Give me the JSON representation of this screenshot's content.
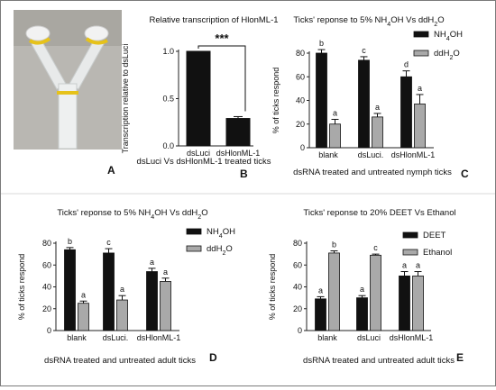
{
  "panel_letters": {
    "A": "A",
    "B": "B",
    "C": "C",
    "D": "D",
    "E": "E"
  },
  "colors": {
    "bar_black": "#111111",
    "bar_gray": "#a9a9a9",
    "axis": "#222222",
    "photo_bg": "#b9b7b2"
  },
  "photo": {
    "description_icon": "y-tube-olfactometer-photo"
  },
  "chart_data": [
    {
      "id": "B",
      "type": "bar",
      "title": "Relative transcription of HlonML-1",
      "ylabel": "Transcription relative to dsLuci",
      "xlabel": "dsLuci Vs dsHlonML-1 treated ticks",
      "categories": [
        "dsLuci",
        "dsHlonML-1"
      ],
      "values": [
        1.0,
        0.29
      ],
      "errors": [
        0.0,
        0.02
      ],
      "bar_colors": [
        "#111111",
        "#111111"
      ],
      "ylim": [
        0,
        1.0
      ],
      "yticks": [
        "0.0",
        "0.5",
        "1.0"
      ],
      "significance": "***",
      "grid": false
    },
    {
      "id": "C",
      "type": "bar",
      "title": "Ticks' reponse to 5% NH4OH Vs ddH2O",
      "ylabel": "% of ticks respond",
      "xlabel": "dsRNA treated and untreated nymph ticks",
      "categories": [
        "blank",
        "dsLuci.",
        "dsHlonML-1"
      ],
      "series": [
        {
          "name": "NH4OH",
          "values": [
            80,
            74,
            60
          ],
          "errors": [
            3,
            3,
            5
          ],
          "letters": [
            "b",
            "c",
            "d"
          ]
        },
        {
          "name": "ddH2O",
          "values": [
            20,
            26,
            37
          ],
          "errors": [
            4,
            3,
            8
          ],
          "letters": [
            "a",
            "a",
            "a"
          ]
        }
      ],
      "ylim": [
        0,
        80
      ],
      "yticks": [
        "0",
        "20",
        "40",
        "60",
        "80"
      ],
      "legend": "top-right",
      "grid": false
    },
    {
      "id": "D",
      "type": "bar",
      "title": "Ticks' reponse to 5% NH4OH Vs ddH2O",
      "ylabel": "% of ticks respond",
      "xlabel": "dsRNA treated and untreated adult ticks",
      "categories": [
        "blank",
        "dsLuci.",
        "dsHlonML-1"
      ],
      "series": [
        {
          "name": "NH4OH",
          "values": [
            74,
            71,
            54
          ],
          "errors": [
            2,
            4,
            3
          ],
          "letters": [
            "b",
            "c",
            "a"
          ]
        },
        {
          "name": "ddH2O",
          "values": [
            25,
            28,
            45
          ],
          "errors": [
            2,
            4,
            3
          ],
          "letters": [
            "a",
            "a",
            "a"
          ]
        }
      ],
      "ylim": [
        0,
        80
      ],
      "yticks": [
        "0",
        "20",
        "40",
        "60",
        "80"
      ],
      "legend": "top-right",
      "grid": false
    },
    {
      "id": "E",
      "type": "bar",
      "title": "Ticks' reponse to 20% DEET Vs Ethanol",
      "ylabel": "% of ticks respond",
      "xlabel": "dsRNA treated and untreated adult ticks",
      "categories": [
        "blank",
        "dsLuci",
        "dsHlonML-1"
      ],
      "series": [
        {
          "name": "DEET",
          "values": [
            29,
            30,
            50
          ],
          "errors": [
            2,
            2,
            4
          ],
          "letters": [
            "a",
            "a",
            "a"
          ]
        },
        {
          "name": "Ethanol",
          "values": [
            71,
            69,
            50
          ],
          "errors": [
            2,
            1,
            4
          ],
          "letters": [
            "b",
            "c",
            "a"
          ]
        }
      ],
      "ylim": [
        0,
        80
      ],
      "yticks": [
        "0",
        "20",
        "40",
        "60",
        "80"
      ],
      "legend": "top-right",
      "grid": false
    }
  ]
}
